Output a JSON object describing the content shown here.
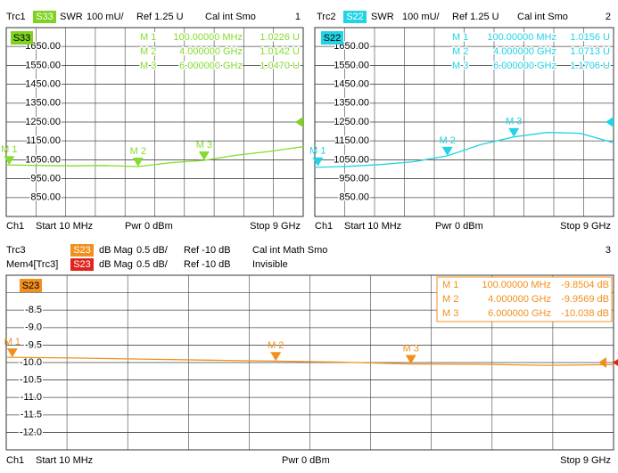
{
  "chart_data": [
    {
      "type": "line",
      "number": "1",
      "header": [
        {
          "trace": "Trc1",
          "param": "S33",
          "param_color": "#7ed321",
          "format": "SWR",
          "scale": "100 mU/",
          "ref": "Ref 1.25 U",
          "info": "Cal int Smo"
        }
      ],
      "footer": {
        "channel": "Ch1",
        "start": "Start 10 MHz",
        "power": "Pwr 0 dBm",
        "stop": "Stop 9 GHz"
      },
      "xlim": [
        0.01,
        9
      ],
      "ylim": [
        750,
        1750
      ],
      "yticks": [
        {
          "value": 1650,
          "label": "1650.00"
        },
        {
          "value": 1550,
          "label": "1550.00"
        },
        {
          "value": 1450,
          "label": "1450.00"
        },
        {
          "value": 1350,
          "label": "1350.00"
        },
        {
          "value": 1250,
          "label": "1250.00"
        },
        {
          "value": 1150,
          "label": "1150.00"
        },
        {
          "value": 1050,
          "label": "1050.00"
        },
        {
          "value": 950,
          "label": "950.00"
        },
        {
          "value": 850,
          "label": "850.00"
        }
      ],
      "series": [
        {
          "color": "#84dc2c",
          "x": [
            0.01,
            1,
            2,
            3,
            4,
            5,
            6,
            7,
            8,
            9
          ],
          "values": [
            1023,
            1020,
            1018,
            1020,
            1014,
            1035,
            1047,
            1075,
            1095,
            1120
          ]
        }
      ],
      "markers": [
        {
          "label": "M 1",
          "x": 0.1,
          "x_label": "100.00000 MHz",
          "value": 1022.6,
          "value_label": "1.0226 U"
        },
        {
          "label": "M 2",
          "x": 4,
          "x_label": "4.000000 GHz",
          "value": 1014.2,
          "value_label": "1.0142 U"
        },
        {
          "label": "M 3",
          "x": 6,
          "x_label": "6.000000 GHz",
          "value": 1047,
          "value_label": "1.0470 U"
        }
      ]
    },
    {
      "type": "line",
      "number": "2",
      "header": [
        {
          "trace": "Trc2",
          "param": "S22",
          "param_color": "#22d3e6",
          "format": "SWR",
          "scale": "100 mU/",
          "ref": "Ref 1.25 U",
          "info": "Cal int Smo"
        }
      ],
      "footer": {
        "channel": "Ch1",
        "start": "Start 10 MHz",
        "power": "Pwr 0 dBm",
        "stop": "Stop 9 GHz"
      },
      "xlim": [
        0.01,
        9
      ],
      "ylim": [
        750,
        1750
      ],
      "yticks": [
        {
          "value": 1650,
          "label": "1650.00"
        },
        {
          "value": 1550,
          "label": "1550.00"
        },
        {
          "value": 1450,
          "label": "1450.00"
        },
        {
          "value": 1350,
          "label": "1350.00"
        },
        {
          "value": 1250,
          "label": "1250.00"
        },
        {
          "value": 1150,
          "label": "1150.00"
        },
        {
          "value": 1050,
          "label": "1050.00"
        },
        {
          "value": 950,
          "label": "950.00"
        },
        {
          "value": 850,
          "label": "850.00"
        }
      ],
      "series": [
        {
          "color": "#22d3e6",
          "x": [
            0.01,
            1,
            2,
            3,
            4,
            5,
            6,
            7,
            8,
            9
          ],
          "values": [
            1010,
            1015,
            1025,
            1040,
            1071,
            1130,
            1171,
            1195,
            1190,
            1140
          ]
        }
      ],
      "markers": [
        {
          "label": "M 1",
          "x": 0.1,
          "x_label": "100.00000 MHz",
          "value": 1015.6,
          "value_label": "1.0156 U"
        },
        {
          "label": "M 2",
          "x": 4,
          "x_label": "4.000000 GHz",
          "value": 1071.3,
          "value_label": "1.0713 U"
        },
        {
          "label": "M 3",
          "x": 6,
          "x_label": "6.000000 GHz",
          "value": 1170.6,
          "value_label": "1.1706 U"
        }
      ]
    },
    {
      "type": "line",
      "number": "3",
      "header": [
        {
          "trace": "Trc3",
          "param": "S23",
          "param_color": "#f0901e",
          "format": "dB Mag",
          "scale": "0.5 dB/",
          "ref": "Ref -10 dB",
          "info": "Cal int Math Smo"
        },
        {
          "trace": "Mem4[Trc3]",
          "param": "S23",
          "param_color": "#e0241c",
          "format": "dB Mag",
          "scale": "0.5 dB/",
          "ref": "Ref -10 dB",
          "info": "Invisible"
        }
      ],
      "footer": {
        "channel": "Ch1",
        "start": "Start 10 MHz",
        "power": "Pwr 0 dBm",
        "stop": "Stop 9 GHz"
      },
      "xlim": [
        0.01,
        9
      ],
      "ylim": [
        -12.5,
        -7.5
      ],
      "yticks": [
        -8.5,
        {
          "value": -9,
          "label": "-9.0"
        },
        -9.5,
        {
          "value": -10,
          "label": "-10.0"
        },
        -10.5,
        {
          "value": -11,
          "label": "-11.0"
        },
        -11.5,
        {
          "value": -12,
          "label": "-12.0"
        }
      ],
      "series": [
        {
          "color": "#f0901e",
          "x": [
            0.01,
            1,
            2,
            3,
            4,
            5,
            6,
            7,
            8,
            9
          ],
          "values": [
            -9.85,
            -9.87,
            -9.9,
            -9.93,
            -9.96,
            -9.99,
            -10.04,
            -10.05,
            -10.08,
            -10.06
          ]
        }
      ],
      "markers": [
        {
          "label": "M 1",
          "x": 0.1,
          "x_label": "100.00000 MHz",
          "value": -9.8504,
          "value_label": "-9.8504 dB"
        },
        {
          "label": "M 2",
          "x": 4,
          "x_label": "4.000000 GHz",
          "value": -9.9569,
          "value_label": "-9.9569 dB"
        },
        {
          "label": "M 3",
          "x": 6,
          "x_label": "6.000000 GHz",
          "value": -10.038,
          "value_label": "-10.038 dB"
        }
      ]
    }
  ]
}
